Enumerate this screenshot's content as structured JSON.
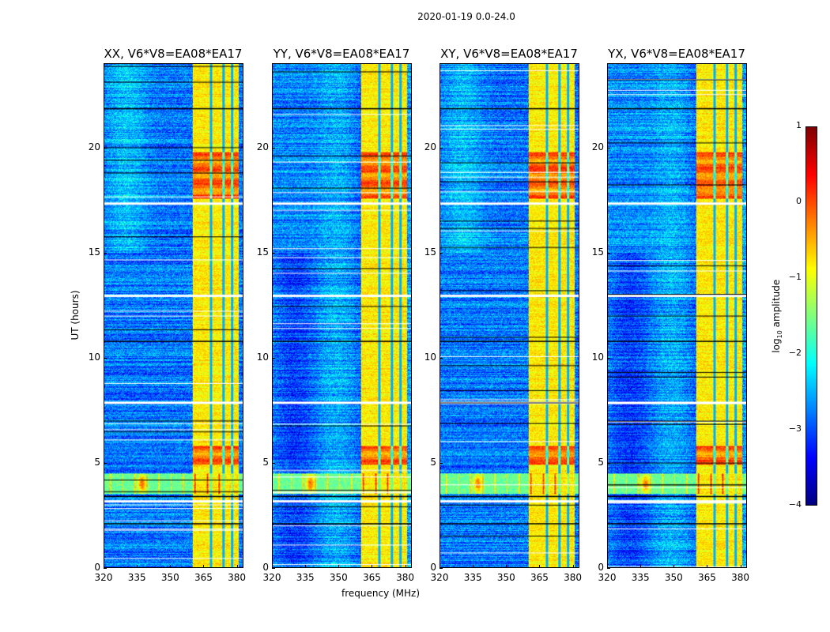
{
  "suptitle": "2020-01-19 0.0-24.0",
  "chart_data": {
    "type": "heatmap",
    "panels": [
      {
        "title": "XX, V6*V8=EA08*EA17"
      },
      {
        "title": "YY, V6*V8=EA08*EA17"
      },
      {
        "title": "XY, V6*V8=EA08*EA17"
      },
      {
        "title": "YX, V6*V8=EA08*EA17"
      }
    ],
    "xlabel": "frequency (MHz)",
    "ylabel": "UT (hours)",
    "xlim": [
      320,
      383
    ],
    "ylim": [
      0,
      24
    ],
    "xticks": [
      "320",
      "335",
      "350",
      "365",
      "380"
    ],
    "xtick_values": [
      320,
      335,
      350,
      365,
      380
    ],
    "yticks": [
      "0",
      "5",
      "10",
      "15",
      "20"
    ],
    "ytick_values": [
      0,
      5,
      10,
      15,
      20
    ],
    "colorbar": {
      "label_main": "log",
      "label_sub": "10",
      "label_rest": " amplitude",
      "range": [
        -4,
        1
      ],
      "ticks": [
        "1",
        "0",
        "−1",
        "−2",
        "−3",
        "−4"
      ],
      "tick_values": [
        1,
        0,
        -1,
        -2,
        -3,
        -4
      ],
      "colormap": "jet"
    },
    "features": {
      "background_level": -2.8,
      "bright_band_mhz": [
        360,
        381
      ],
      "bright_band_level": -0.8,
      "bright_hours": [
        [
          17.6,
          19.8
        ],
        [
          4.9,
          5.8
        ]
      ],
      "rfi_hours": [
        3.5,
        4.5
      ],
      "flagged_hours": [
        3.2,
        3.4,
        7.9,
        10.8,
        17.4,
        2.1,
        13.0,
        21.9
      ]
    }
  }
}
